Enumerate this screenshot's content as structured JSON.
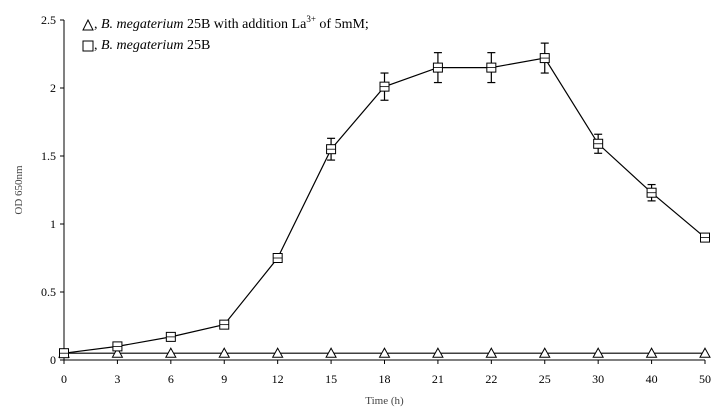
{
  "chart_data": {
    "type": "line",
    "title": "",
    "xlabel": "Time (h)",
    "ylabel": "OD 650nm",
    "categories": [
      "0",
      "3",
      "6",
      "9",
      "12",
      "15",
      "18",
      "21",
      "22",
      "25",
      "30",
      "40",
      "50"
    ],
    "ylim": [
      0,
      2.5
    ],
    "yticks": [
      "0",
      "0.5",
      "1",
      "1.5",
      "2",
      "2.5"
    ],
    "grid": false,
    "legend_position": "top-left",
    "series": [
      {
        "name": ", B. megaterium 25B with addition La3+ of 5mM;",
        "marker": "triangle",
        "values": [
          0.05,
          0.05,
          0.05,
          0.05,
          0.05,
          0.05,
          0.05,
          0.05,
          0.05,
          0.05,
          0.05,
          0.05,
          0.05
        ],
        "errors": [
          0,
          0,
          0,
          0,
          0,
          0,
          0,
          0,
          0,
          0,
          0,
          0,
          0
        ]
      },
      {
        "name": ", B. megaterium 25B",
        "marker": "square",
        "values": [
          0.05,
          0.1,
          0.17,
          0.26,
          0.75,
          1.55,
          2.01,
          2.15,
          2.15,
          2.22,
          1.59,
          1.23,
          0.9
        ],
        "errors": [
          0,
          0,
          0,
          0,
          0.03,
          0.08,
          0.1,
          0.11,
          0.11,
          0.11,
          0.07,
          0.06,
          0.03
        ]
      }
    ]
  },
  "legend": {
    "entry1": {
      "species": "B. megaterium",
      "strain": " 25B with addition La",
      "sup": "3+",
      "tail": " of 5mM;"
    },
    "entry2": {
      "species": "B. megaterium",
      "strain": " 25B"
    }
  }
}
